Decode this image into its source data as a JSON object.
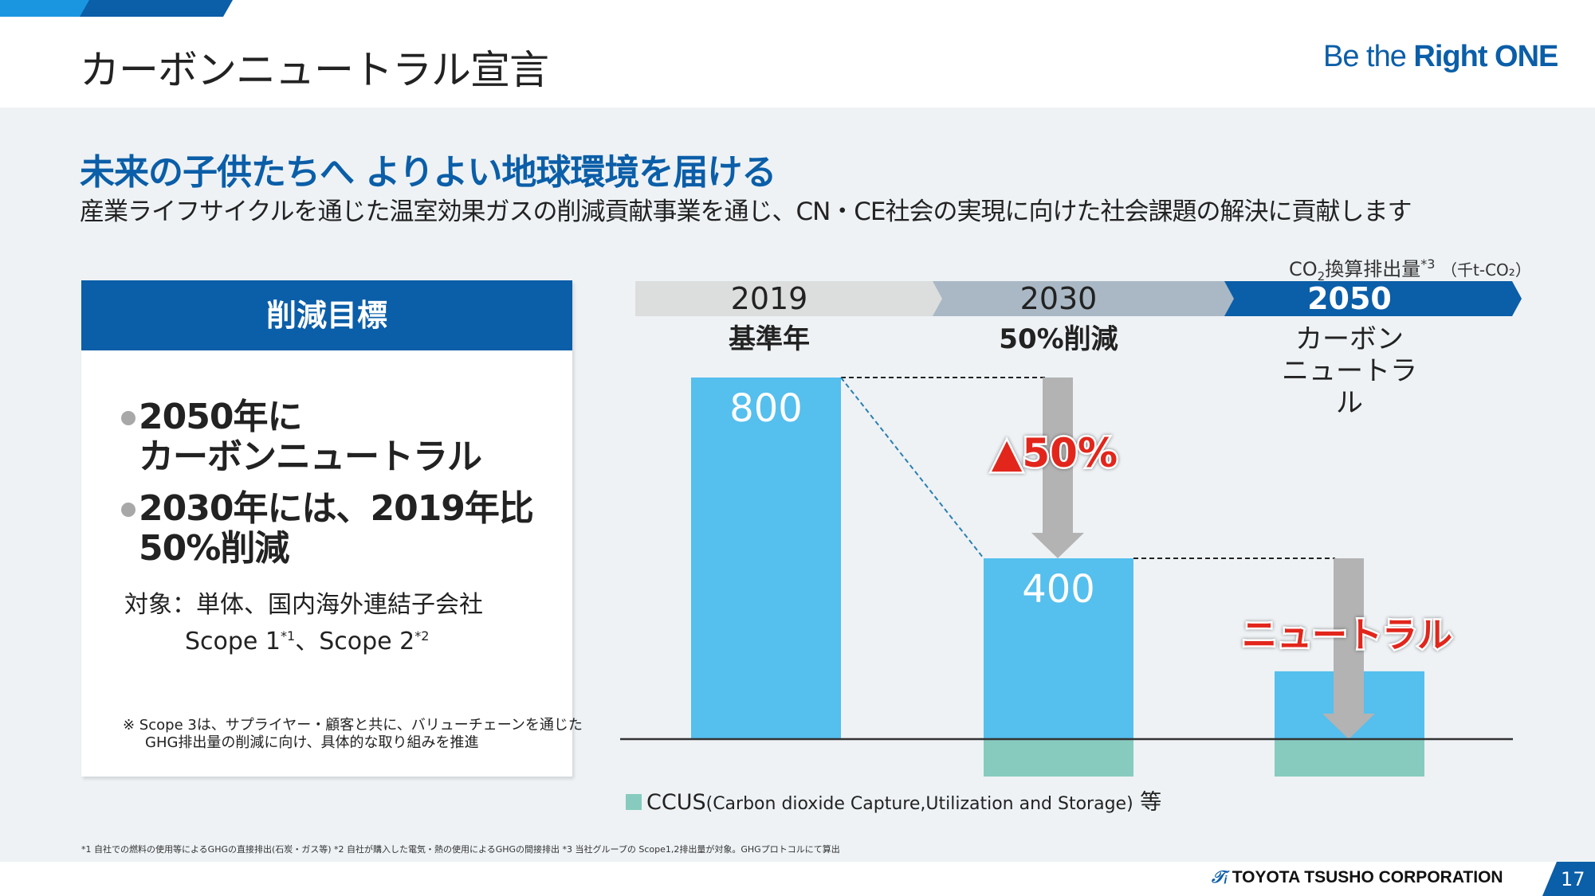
{
  "header": {
    "title": "カーボンニュートラル宣言",
    "logo_regular": "Be the ",
    "logo_bold": "Right ONE"
  },
  "headline": "未来の子供たちへ よりよい地球環境を届ける",
  "subline": "産業ライフサイクルを通じた温室効果ガスの削減貢献事業を通じ、CN・CE社会の実現に向けた社会課題の解決に貢献します",
  "card": {
    "title": "削減目標",
    "bullets": [
      {
        "line1": "2050年に",
        "line2": "カーボンニュートラル"
      },
      {
        "line1": "2030年には、2019年比",
        "line2": "50%削減"
      }
    ],
    "scope_label": "対象：単体、国内海外連結子会社",
    "scope1": "Scope 1",
    "scope1_note": "*1",
    "scope_sep": "、",
    "scope2": "Scope 2",
    "scope2_note": "*2",
    "scope3_line1": "※ Scope 3は、サプライヤー・顧客と共に、バリューチェーンを通じた",
    "scope3_line2": "GHG排出量の削減に向け、具体的な取り組みを推進"
  },
  "unit": {
    "prefix": "CO",
    "sub": "2",
    "main": "換算排出量",
    "note": "*3",
    "paren": "（千t-CO₂）"
  },
  "colors": {
    "brand_blue": "#0b5ea8",
    "bar_blue": "#55bfee",
    "ccus_green": "#87cbbf",
    "arrow_grey": "#b3b3b3",
    "highlight_red": "#e2261c",
    "timeline": [
      "#dcdddd",
      "#a9b8c4",
      "#0b5ea8"
    ]
  },
  "chart_data": {
    "type": "bar",
    "title": "CO2換算排出量*3（千t-CO2）",
    "categories": [
      "2019",
      "2030",
      "2050"
    ],
    "category_subtitles": [
      "基準年",
      "50%削減",
      "カーボン\nニュートラル"
    ],
    "series": [
      {
        "name": "排出量",
        "values": [
          800,
          400,
          150
        ],
        "labels": [
          "800",
          "400",
          ""
        ]
      },
      {
        "name": "CCUS(Carbon dioxide Capture,Utilization and Storage) 等",
        "values": [
          0,
          -100,
          -100
        ]
      }
    ],
    "annotations": [
      "▲50%",
      "ニュートラル"
    ],
    "ylim": [
      -100,
      800
    ],
    "legend": "bottom-left",
    "grid": false
  },
  "legend": {
    "label_main": "CCUS",
    "label_detail": "(Carbon dioxide Capture,Utilization and Storage)",
    "label_suffix": " 等"
  },
  "footnote": "*1 自社での燃料の使用等によるGHGの直接排出(石炭・ガス等)  *2 自社が購入した電気・熱の使用によるGHGの間接排出  *3 当社グループの Scope1,2排出量が対象。GHGプロトコルにて算出",
  "footer": {
    "company": "TOYOTA TSUSHO CORPORATION",
    "page": "17"
  }
}
